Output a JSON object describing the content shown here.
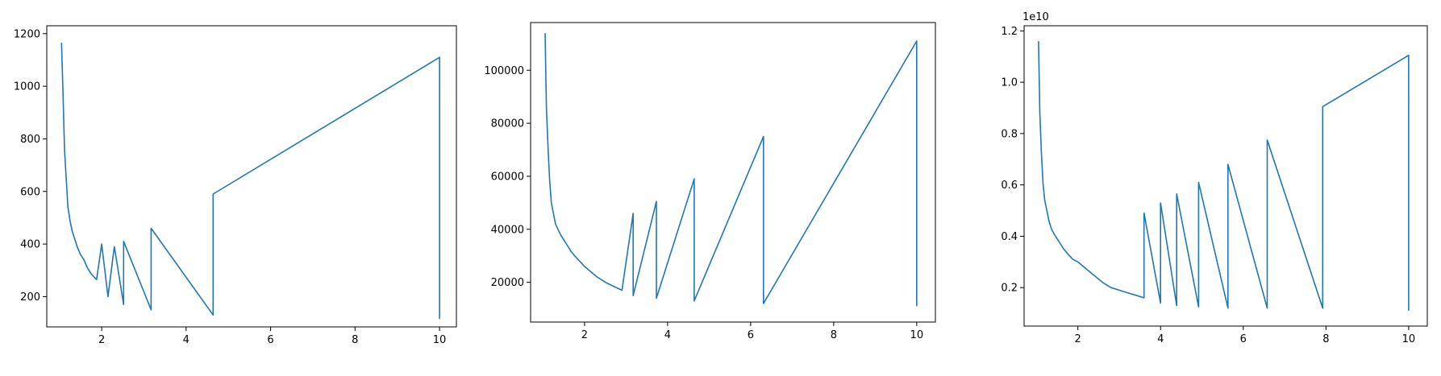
{
  "chart_data": [
    {
      "type": "line",
      "title": "",
      "xlabel": "",
      "ylabel": "",
      "xlim": [
        0.7,
        10.4
      ],
      "ylim": [
        85,
        1230
      ],
      "xticks": [
        2,
        4,
        6,
        8,
        10
      ],
      "yticks": [
        200,
        400,
        600,
        800,
        1000,
        1200
      ],
      "ytick_labels": [
        "200",
        "400",
        "600",
        "800",
        "1000",
        "1200"
      ],
      "y_offset_label": "",
      "grid": false,
      "color": "#1f77b4",
      "x": [
        1.05,
        1.08,
        1.12,
        1.16,
        1.2,
        1.25,
        1.3,
        1.36,
        1.42,
        1.5,
        1.58,
        1.66,
        1.76,
        1.88,
        2.0,
        2.15,
        2.3,
        2.52,
        2.52,
        3.17,
        3.17,
        4.64,
        4.64,
        10.0,
        10.0
      ],
      "y": [
        1165,
        1000,
        760,
        650,
        540,
        490,
        450,
        420,
        390,
        360,
        340,
        310,
        285,
        265,
        400,
        200,
        390,
        170,
        410,
        150,
        460,
        130,
        590,
        1110,
        115
      ]
    },
    {
      "type": "line",
      "title": "",
      "xlabel": "",
      "ylabel": "",
      "xlim": [
        0.7,
        10.45
      ],
      "ylim": [
        5000,
        118000
      ],
      "xticks": [
        2,
        4,
        6,
        8,
        10
      ],
      "yticks": [
        20000,
        40000,
        60000,
        80000,
        100000
      ],
      "ytick_labels": [
        "20000",
        "40000",
        "60000",
        "80000",
        "100000"
      ],
      "y_offset_label": "",
      "grid": false,
      "color": "#1f77b4",
      "x": [
        1.05,
        1.08,
        1.12,
        1.16,
        1.2,
        1.25,
        1.3,
        1.36,
        1.42,
        1.5,
        1.58,
        1.66,
        1.76,
        1.88,
        2.0,
        2.15,
        2.3,
        2.5,
        2.7,
        2.9,
        3.17,
        3.17,
        3.73,
        3.73,
        4.64,
        4.64,
        6.31,
        6.31,
        10.0,
        10.0
      ],
      "y": [
        114000,
        86000,
        71000,
        58000,
        50000,
        46000,
        42000,
        40000,
        38000,
        36000,
        34000,
        32000,
        30000,
        28000,
        26000,
        24000,
        22000,
        20000,
        18500,
        17000,
        46000,
        15000,
        50500,
        14000,
        59000,
        13000,
        75000,
        12000,
        111000,
        11000
      ]
    },
    {
      "type": "line",
      "title": "",
      "xlabel": "",
      "ylabel": "",
      "xlim": [
        0.7,
        10.45
      ],
      "ylim": [
        0.05,
        1.22
      ],
      "xticks": [
        2,
        4,
        6,
        8,
        10
      ],
      "yticks": [
        0.2,
        0.4,
        0.6,
        0.8,
        1.0,
        1.2
      ],
      "ytick_labels": [
        "0.2",
        "0.4",
        "0.6",
        "0.8",
        "1.0",
        "1.2"
      ],
      "y_offset_label": "1e10",
      "grid": false,
      "color": "#1f77b4",
      "x": [
        1.05,
        1.08,
        1.12,
        1.16,
        1.2,
        1.25,
        1.3,
        1.36,
        1.42,
        1.5,
        1.58,
        1.66,
        1.76,
        1.88,
        2.0,
        2.15,
        2.3,
        2.45,
        2.6,
        2.8,
        3.0,
        3.2,
        3.4,
        3.6,
        3.6,
        4.0,
        4.0,
        4.39,
        4.39,
        4.92,
        4.92,
        5.63,
        5.63,
        6.58,
        6.58,
        7.92,
        7.92,
        10.0,
        10.0
      ],
      "y": [
        1.16,
        0.88,
        0.72,
        0.6,
        0.54,
        0.5,
        0.46,
        0.43,
        0.41,
        0.39,
        0.37,
        0.35,
        0.33,
        0.31,
        0.3,
        0.28,
        0.26,
        0.24,
        0.22,
        0.2,
        0.19,
        0.18,
        0.17,
        0.16,
        0.49,
        0.14,
        0.53,
        0.13,
        0.565,
        0.125,
        0.61,
        0.12,
        0.68,
        0.12,
        0.775,
        0.12,
        0.905,
        1.105,
        0.11
      ]
    }
  ]
}
